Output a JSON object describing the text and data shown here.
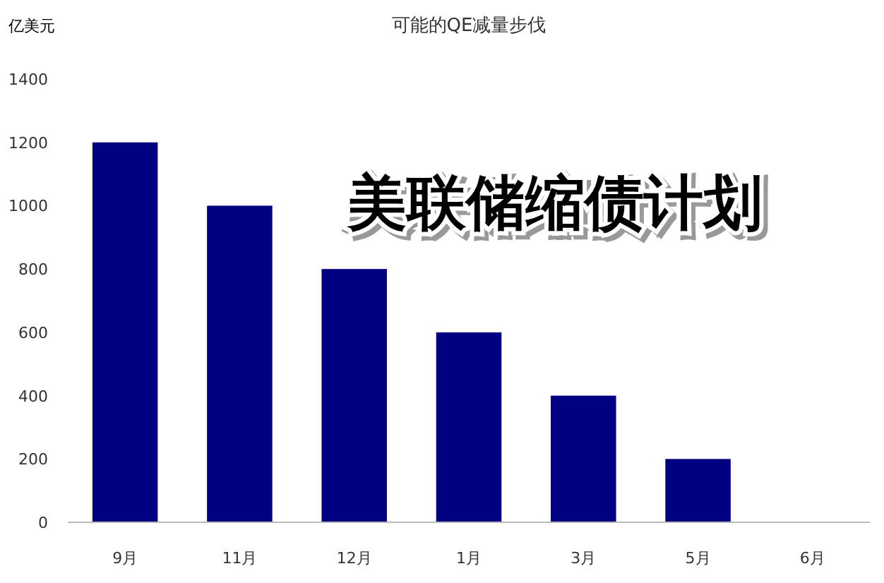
{
  "chart_data": {
    "type": "bar",
    "title": "可能的QE减量步伐",
    "ylabel": "亿美元",
    "categories": [
      "9月",
      "11月",
      "12月",
      "1月",
      "3月",
      "5月",
      "6月"
    ],
    "values": [
      1200,
      1000,
      800,
      600,
      400,
      200,
      0
    ],
    "color": "#000080",
    "ylim": [
      0,
      1400
    ],
    "yticks": [
      0,
      200,
      400,
      600,
      800,
      1000,
      1200,
      1400
    ],
    "annotations": [
      "美联储缩债计划"
    ]
  }
}
